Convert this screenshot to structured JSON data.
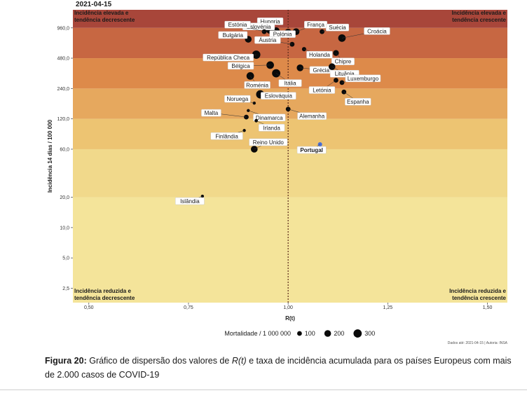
{
  "date_label": "2021-04-15",
  "chart_data": {
    "type": "scatter",
    "title": "2021-04-15",
    "xlabel": "R(t)",
    "ylabel": "Incidência 14 dias / 100 000",
    "x_scale": "linear",
    "y_scale": "log",
    "xlim": [
      0.46,
      1.55
    ],
    "ylim": [
      1.8,
      1450
    ],
    "x_ticks": [
      0.5,
      0.75,
      1.0,
      1.25,
      1.5
    ],
    "x_tick_labels": [
      "0,50",
      "0,75",
      "1,00",
      "1,25",
      "1,50"
    ],
    "y_ticks": [
      2.5,
      5,
      10,
      20,
      60,
      120,
      240,
      480,
      960
    ],
    "y_tick_labels": [
      "2,5",
      "5,0",
      "10,0",
      "20,0",
      "60,0",
      "120,0",
      "240,0",
      "480,0",
      "960,0"
    ],
    "reference_line_x": 1.0,
    "grid": false,
    "bands": [
      {
        "from": 1.8,
        "to": 20,
        "color": "#F4E49A"
      },
      {
        "from": 20,
        "to": 60,
        "color": "#F1D98B"
      },
      {
        "from": 60,
        "to": 120,
        "color": "#EDC472"
      },
      {
        "from": 120,
        "to": 240,
        "color": "#E6A85E"
      },
      {
        "from": 240,
        "to": 480,
        "color": "#DD8A4A"
      },
      {
        "from": 480,
        "to": 960,
        "color": "#C76742"
      },
      {
        "from": 960,
        "to": 1450,
        "color": "#A8463A"
      }
    ],
    "corner_labels": {
      "top_left": [
        "Incidência elevada e",
        "tendência decrescente"
      ],
      "top_right": [
        "Incidência elevada e",
        "tendência crescente"
      ],
      "bottom_left": [
        "Incidência reduzida e",
        "tendência decrescente"
      ],
      "bottom_right": [
        "Incidência reduzida e",
        "tendência crescente"
      ]
    },
    "points": [
      {
        "name": "Hungria",
        "x": 0.955,
        "y": 920,
        "mort": 300
      },
      {
        "name": "Eslovénia",
        "x": 0.97,
        "y": 900,
        "mort": 200
      },
      {
        "name": "França",
        "x": 1.02,
        "y": 880,
        "mort": 200
      },
      {
        "name": "Estónia",
        "x": 0.94,
        "y": 880,
        "mort": 100
      },
      {
        "name": "Polónia",
        "x": 1.0,
        "y": 860,
        "mort": 250
      },
      {
        "name": "Suécia",
        "x": 1.085,
        "y": 880,
        "mort": 100
      },
      {
        "name": "Croácia",
        "x": 1.135,
        "y": 760,
        "mort": 250
      },
      {
        "name": "Bulgária",
        "x": 0.9,
        "y": 740,
        "mort": 200
      },
      {
        "name": "Áustria",
        "x": 1.01,
        "y": 660,
        "mort": 100
      },
      {
        "name": "Holanda",
        "x": 1.04,
        "y": 590,
        "mort": 80
      },
      {
        "name": "Chipre",
        "x": 1.12,
        "y": 540,
        "mort": 150
      },
      {
        "name": "República Checa",
        "x": 0.92,
        "y": 520,
        "mort": 300
      },
      {
        "name": "Bélgica",
        "x": 0.955,
        "y": 410,
        "mort": 250
      },
      {
        "name": "Grécia",
        "x": 1.03,
        "y": 385,
        "mort": 200
      },
      {
        "name": "Lituânia",
        "x": 1.11,
        "y": 395,
        "mort": 200
      },
      {
        "name": "Itália",
        "x": 0.97,
        "y": 340,
        "mort": 300
      },
      {
        "name": "Roménia",
        "x": 0.905,
        "y": 320,
        "mort": 250
      },
      {
        "name": "Letónia",
        "x": 1.12,
        "y": 290,
        "mort": 100
      },
      {
        "name": "Luxemburgo",
        "x": 1.135,
        "y": 275,
        "mort": 100
      },
      {
        "name": "Espanha",
        "x": 1.14,
        "y": 222,
        "mort": 100
      },
      {
        "name": "Eslováquia",
        "x": 0.93,
        "y": 210,
        "mort": 300
      },
      {
        "name": "Noruega",
        "x": 0.915,
        "y": 172,
        "mort": 20
      },
      {
        "name": "Alemanha",
        "x": 1.0,
        "y": 150,
        "mort": 100
      },
      {
        "name": "Dinamarca",
        "x": 0.9,
        "y": 145,
        "mort": 20
      },
      {
        "name": "Malta",
        "x": 0.895,
        "y": 125,
        "mort": 100
      },
      {
        "name": "Irlanda",
        "x": 0.92,
        "y": 115,
        "mort": 50
      },
      {
        "name": "Finlândia",
        "x": 0.89,
        "y": 92,
        "mort": 20
      },
      {
        "name": "Reino Unido",
        "x": 0.915,
        "y": 60,
        "mort": 200
      },
      {
        "name": "Portugal",
        "x": 1.08,
        "y": 67,
        "mort": 80,
        "highlight": true
      },
      {
        "name": "Islândia",
        "x": 0.785,
        "y": 20.5,
        "mort": 20
      }
    ],
    "legend": {
      "title": "Mortalidade / 1 000 000",
      "items": [
        {
          "label": "100",
          "value": 100
        },
        {
          "label": "200",
          "value": 200
        },
        {
          "label": "300",
          "value": 300
        }
      ]
    },
    "source_note": "Dados até: 2021-04-15 | Autoria: INSA"
  },
  "caption": {
    "title": "Figura 20:",
    "text_before": " Gráfico de dispersão dos valores de ",
    "italic": "R(t)",
    "text_after": " e taxa de incidência acumulada para os países Europeus com mais de 2.000 casos de COVID-19"
  },
  "colors": {
    "point": "#0a0a0a",
    "highlight": "#4a6fd6",
    "reference_line": "#5a2a1a"
  }
}
